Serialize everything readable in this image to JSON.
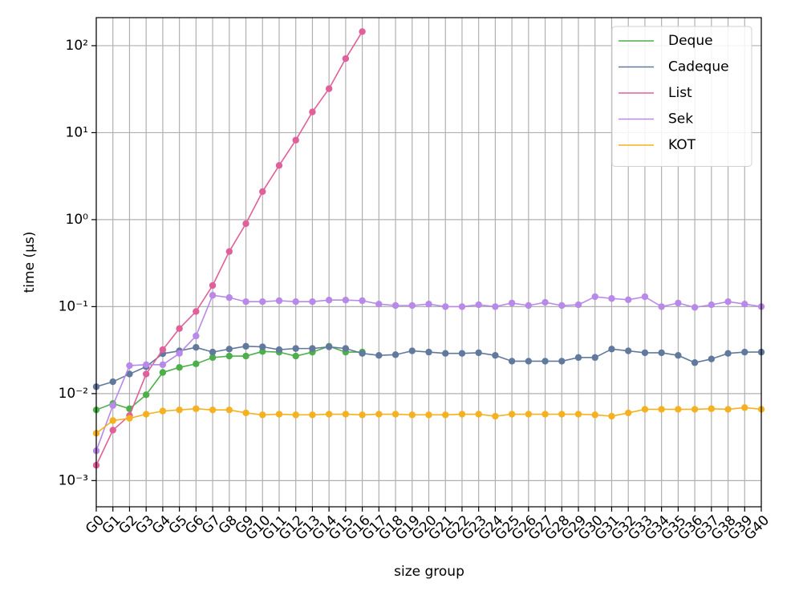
{
  "chart_data": {
    "type": "line",
    "x_label": "size group",
    "y_label": "time (µs)",
    "log_y": true,
    "grid": true,
    "legend": "upper right",
    "categories": [
      "G0",
      "G1",
      "G2",
      "G3",
      "G4",
      "G5",
      "G6",
      "G7",
      "G8",
      "G9",
      "G10",
      "G11",
      "G12",
      "G13",
      "G14",
      "G15",
      "G16",
      "G17",
      "G18",
      "G19",
      "G20",
      "G21",
      "G22",
      "G23",
      "G24",
      "G25",
      "G26",
      "G27",
      "G28",
      "G29",
      "G30",
      "G31",
      "G32",
      "G33",
      "G34",
      "G35",
      "G36",
      "G37",
      "G38",
      "G39",
      "G40"
    ],
    "ylim": [
      0.0005,
      210
    ],
    "yticks": [
      {
        "value": 0.001,
        "label": "10⁻³"
      },
      {
        "value": 0.01,
        "label": "10⁻²"
      },
      {
        "value": 0.1,
        "label": "10⁻¹"
      },
      {
        "value": 1,
        "label": "10⁰"
      },
      {
        "value": 10,
        "label": "10¹"
      },
      {
        "value": 100,
        "label": "10²"
      }
    ],
    "series": [
      {
        "name": "Deque",
        "color": "#4daf4a",
        "values": [
          0.0065,
          0.0077,
          0.0067,
          0.0097,
          0.0175,
          0.02,
          0.022,
          0.026,
          0.027,
          0.027,
          0.0305,
          0.03,
          0.027,
          0.03,
          0.035,
          0.03,
          0.03,
          null,
          null,
          null,
          null,
          null,
          null,
          null,
          null,
          null,
          null,
          null,
          null,
          null,
          null,
          null,
          null,
          null,
          null,
          null,
          null,
          null,
          null,
          null,
          null
        ]
      },
      {
        "name": "Cadeque",
        "color": "#62799e",
        "values": [
          0.012,
          0.0137,
          0.0168,
          0.0204,
          0.0288,
          0.031,
          0.034,
          0.03,
          0.0325,
          0.035,
          0.0345,
          0.032,
          0.033,
          0.033,
          0.0345,
          0.033,
          0.029,
          0.0275,
          0.028,
          0.031,
          0.03,
          0.029,
          0.029,
          0.0295,
          0.0275,
          0.0236,
          0.0236,
          0.0236,
          0.0236,
          0.026,
          0.026,
          0.0325,
          0.031,
          0.0295,
          0.0295,
          0.0275,
          0.0227,
          0.025,
          0.029,
          0.03,
          0.03
        ]
      },
      {
        "name": "List",
        "color": "#e0609a",
        "values": [
          0.0015,
          0.0038,
          0.0056,
          0.0168,
          0.032,
          0.056,
          0.088,
          0.175,
          0.43,
          0.9,
          2.1,
          4.2,
          8.2,
          17.3,
          32,
          71,
          145,
          null,
          null,
          null,
          null,
          null,
          null,
          null,
          null,
          null,
          null,
          null,
          null,
          null,
          null,
          null,
          null,
          null,
          null,
          null,
          null,
          null,
          null,
          null,
          null
        ]
      },
      {
        "name": "Sek",
        "color": "#b889e8",
        "values": [
          0.0022,
          0.0073,
          0.021,
          0.0215,
          0.0215,
          0.029,
          0.046,
          0.135,
          0.127,
          0.114,
          0.114,
          0.117,
          0.114,
          0.114,
          0.119,
          0.119,
          0.117,
          0.107,
          0.103,
          0.103,
          0.107,
          0.1,
          0.1,
          0.105,
          0.1,
          0.11,
          0.103,
          0.112,
          0.103,
          0.105,
          0.13,
          0.124,
          0.12,
          0.13,
          0.1,
          0.11,
          0.098,
          0.105,
          0.114,
          0.107,
          0.1
        ]
      },
      {
        "name": "KOT",
        "color": "#f5b120",
        "values": [
          0.0035,
          0.0049,
          0.0052,
          0.0058,
          0.0063,
          0.0065,
          0.0067,
          0.0065,
          0.0065,
          0.006,
          0.0057,
          0.0058,
          0.0057,
          0.0057,
          0.0058,
          0.0058,
          0.0057,
          0.0058,
          0.0058,
          0.0057,
          0.0057,
          0.0057,
          0.0058,
          0.0058,
          0.0055,
          0.0058,
          0.0058,
          0.0058,
          0.0058,
          0.0058,
          0.0057,
          0.0055,
          0.006,
          0.0066,
          0.0066,
          0.0066,
          0.0066,
          0.0067,
          0.0066,
          0.0069,
          0.0066
        ]
      }
    ]
  }
}
